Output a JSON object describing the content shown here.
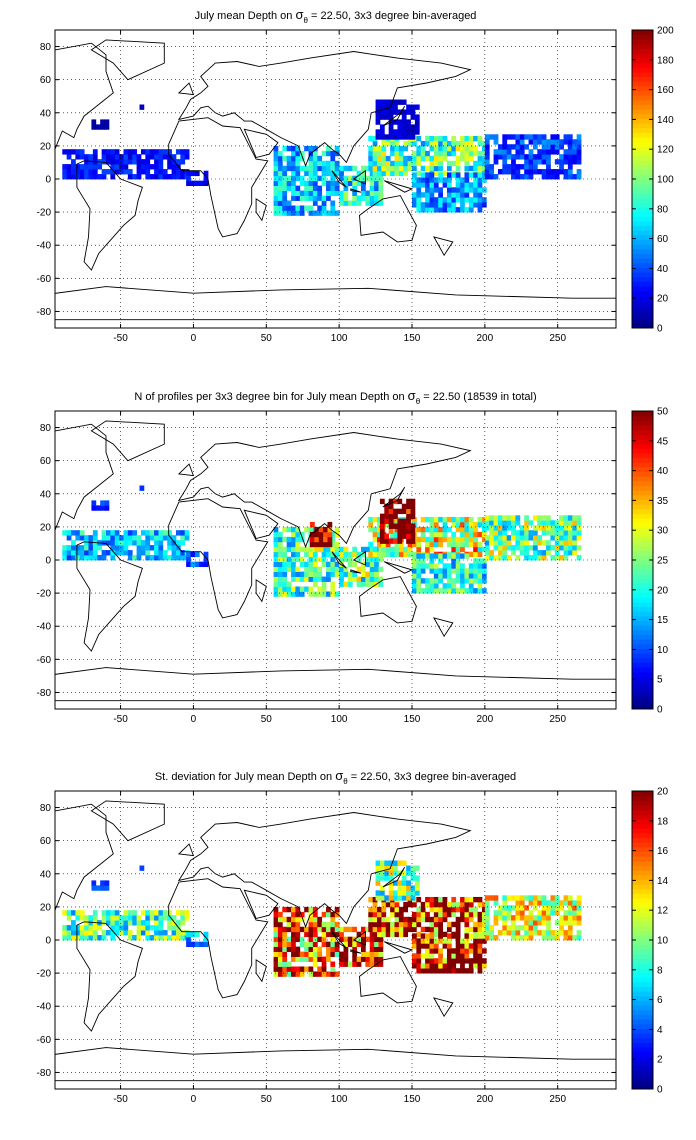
{
  "chart_data": [
    {
      "type": "heatmap",
      "title": "July mean Depth on σ_θ = 22.50, 3x3 degree bin-averaged",
      "title_parts": {
        "pre": "July mean Depth on ",
        "sym": "σ",
        "sub": "θ",
        "post": " = 22.50, 3x3 degree bin-averaged"
      },
      "xlabel": "",
      "ylabel": "",
      "xlim": [
        -95,
        290
      ],
      "ylim": [
        -90,
        90
      ],
      "x_ticks": [
        "-50",
        "0",
        "50",
        "100",
        "150",
        "200",
        "250"
      ],
      "y_ticks": [
        "80",
        "60",
        "40",
        "20",
        "0",
        "-20",
        "-40",
        "-60",
        "-80"
      ],
      "grid": true,
      "colorbar": {
        "min": 0,
        "max": 200,
        "ticks": [
          "0",
          "20",
          "40",
          "60",
          "80",
          "100",
          "120",
          "140",
          "160",
          "180",
          "200"
        ]
      },
      "regions": [
        {
          "lon": [
            -70,
            -58
          ],
          "lat": [
            30,
            36
          ],
          "value": 8
        },
        {
          "lon": [
            -40,
            -35
          ],
          "lat": [
            42,
            45
          ],
          "value": 10
        },
        {
          "lon": [
            -90,
            -5
          ],
          "lat": [
            0,
            18
          ],
          "value": 28
        },
        {
          "lon": [
            -5,
            10
          ],
          "lat": [
            -4,
            4
          ],
          "value": 24
        },
        {
          "lon": [
            55,
            100
          ],
          "lat": [
            -22,
            20
          ],
          "value": 62
        },
        {
          "lon": [
            100,
            130
          ],
          "lat": [
            -16,
            8
          ],
          "value": 75
        },
        {
          "lon": [
            120,
            200
          ],
          "lat": [
            2,
            24
          ],
          "value": 92
        },
        {
          "lon": [
            125,
            155
          ],
          "lat": [
            24,
            46
          ],
          "value": 15
        },
        {
          "lon": [
            150,
            200
          ],
          "lat": [
            -20,
            2
          ],
          "value": 55
        },
        {
          "lon": [
            200,
            265
          ],
          "lat": [
            0,
            25
          ],
          "value": 38
        }
      ]
    },
    {
      "type": "heatmap",
      "title": "N of profiles per 3x3 degree bin for July mean Depth on σ_θ = 22.50 (18539 in total)",
      "title_parts": {
        "pre": "N of profiles per 3x3 degree bin for July mean Depth on ",
        "sym": "σ",
        "sub": "θ",
        "post": " = 22.50 (18539 in total)"
      },
      "xlabel": "",
      "ylabel": "",
      "xlim": [
        -95,
        290
      ],
      "ylim": [
        -90,
        90
      ],
      "x_ticks": [
        "-50",
        "0",
        "50",
        "100",
        "150",
        "200",
        "250"
      ],
      "y_ticks": [
        "80",
        "60",
        "40",
        "20",
        "0",
        "-20",
        "-40",
        "-60",
        "-80"
      ],
      "grid": true,
      "colorbar": {
        "min": 0,
        "max": 50,
        "ticks": [
          "0",
          "5",
          "10",
          "15",
          "20",
          "25",
          "30",
          "35",
          "40",
          "45",
          "50"
        ]
      },
      "regions": [
        {
          "lon": [
            -70,
            -58
          ],
          "lat": [
            30,
            36
          ],
          "value": 8
        },
        {
          "lon": [
            -40,
            -35
          ],
          "lat": [
            42,
            45
          ],
          "value": 6
        },
        {
          "lon": [
            -90,
            -5
          ],
          "lat": [
            0,
            18
          ],
          "value": 16
        },
        {
          "lon": [
            -5,
            10
          ],
          "lat": [
            -4,
            4
          ],
          "value": 10
        },
        {
          "lon": [
            55,
            100
          ],
          "lat": [
            -22,
            20
          ],
          "value": 22
        },
        {
          "lon": [
            80,
            95
          ],
          "lat": [
            5,
            22
          ],
          "value": 46
        },
        {
          "lon": [
            100,
            130
          ],
          "lat": [
            -16,
            8
          ],
          "value": 24
        },
        {
          "lon": [
            120,
            200
          ],
          "lat": [
            2,
            24
          ],
          "value": 30
        },
        {
          "lon": [
            128,
            150
          ],
          "lat": [
            10,
            35
          ],
          "value": 50
        },
        {
          "lon": [
            150,
            200
          ],
          "lat": [
            -20,
            2
          ],
          "value": 20
        },
        {
          "lon": [
            200,
            265
          ],
          "lat": [
            0,
            25
          ],
          "value": 24
        }
      ]
    },
    {
      "type": "heatmap",
      "title": "St. deviation for July mean Depth on σ_θ = 22.50, 3x3 degree bin-averaged",
      "title_parts": {
        "pre": "St. deviation for July mean Depth on ",
        "sym": "σ",
        "sub": "θ",
        "post": " = 22.50, 3x3 degree bin-averaged"
      },
      "xlabel": "",
      "ylabel": "",
      "xlim": [
        -95,
        290
      ],
      "ylim": [
        -90,
        90
      ],
      "x_ticks": [
        "-50",
        "0",
        "50",
        "100",
        "150",
        "200",
        "250"
      ],
      "y_ticks": [
        "80",
        "60",
        "40",
        "20",
        "0",
        "-20",
        "-40",
        "-60",
        "-80"
      ],
      "grid": true,
      "colorbar": {
        "min": 0,
        "max": 20,
        "ticks": [
          "0",
          "2",
          "4",
          "6",
          "8",
          "10",
          "12",
          "14",
          "16",
          "18",
          "20"
        ]
      },
      "regions": [
        {
          "lon": [
            -70,
            -58
          ],
          "lat": [
            30,
            36
          ],
          "value": 4
        },
        {
          "lon": [
            -40,
            -35
          ],
          "lat": [
            42,
            45
          ],
          "value": 3
        },
        {
          "lon": [
            -90,
            -5
          ],
          "lat": [
            0,
            18
          ],
          "value": 9
        },
        {
          "lon": [
            -5,
            10
          ],
          "lat": [
            -4,
            4
          ],
          "value": 6
        },
        {
          "lon": [
            55,
            100
          ],
          "lat": [
            -22,
            20
          ],
          "value": 16
        },
        {
          "lon": [
            100,
            130
          ],
          "lat": [
            -16,
            8
          ],
          "value": 17
        },
        {
          "lon": [
            120,
            200
          ],
          "lat": [
            2,
            24
          ],
          "value": 18
        },
        {
          "lon": [
            125,
            155
          ],
          "lat": [
            24,
            46
          ],
          "value": 10
        },
        {
          "lon": [
            150,
            200
          ],
          "lat": [
            -20,
            2
          ],
          "value": 19
        },
        {
          "lon": [
            200,
            265
          ],
          "lat": [
            0,
            25
          ],
          "value": 11
        }
      ]
    }
  ]
}
